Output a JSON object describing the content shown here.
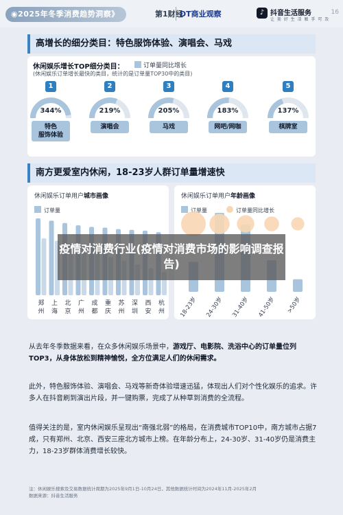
{
  "header": {
    "pill": "◉2025年冬季消费趋势洞察》",
    "brand_a": "第1财经",
    "brand_b": "DT商业观察",
    "tiktok_icon": "♪",
    "tiktok_name": "抖音生活服务",
    "tiktok_sub": "让 美 好 生 活 触 手 可 及",
    "page_number": "16"
  },
  "section1": {
    "title": "高增长的细分类目：特色服饰体验、演唱会、马戏",
    "card_title": "休闲娱乐增长TOP细分类目：",
    "legend": "订单量同比增长",
    "note": "(休闲娱乐订单增长最快的类目，统计的是订单量TOP30中的类目)",
    "categories": [
      {
        "rank": "1",
        "growth": "344%",
        "name": "特色\n服饰体验",
        "fill": 0.95
      },
      {
        "rank": "2",
        "growth": "219%",
        "name": "演唱会",
        "fill": 0.62
      },
      {
        "rank": "3",
        "growth": "205%",
        "name": "马戏",
        "fill": 0.58
      },
      {
        "rank": "4",
        "growth": "183%",
        "name": "网吧/网咖",
        "fill": 0.52
      },
      {
        "rank": "5",
        "growth": "137%",
        "name": "棋牌室",
        "fill": 0.4
      }
    ]
  },
  "section2": {
    "title": "南方更爱室内休闲，18-23岁人群订单量增速快",
    "left": {
      "header_prefix": "休闲娱乐订单用户",
      "header_bold": "城市画像",
      "legend": "订单量"
    },
    "right": {
      "header_prefix": "休闲娱乐订单用户",
      "header_bold": "年龄画像",
      "legend_bar": "订单量",
      "legend_dot": "订单量同比增长"
    }
  },
  "chart_data": [
    {
      "type": "bar",
      "categories": [
        "郑州",
        "上海",
        "北京",
        "广州",
        "成都",
        "重庆",
        "苏州",
        "深圳",
        "西安",
        "杭州"
      ],
      "series": [
        {
          "name": "订单量",
          "values": [
            100,
            97,
            94,
            91,
            89,
            88,
            86,
            85,
            84,
            82
          ]
        },
        {
          "values": [
            74,
            71,
            68,
            62,
            55,
            50,
            45,
            40,
            35,
            30
          ]
        }
      ],
      "xlabel": "",
      "ylabel": "",
      "grid": false,
      "legend": "top-left"
    },
    {
      "type": "bar",
      "categories": [
        "18-23岁",
        "24-30岁",
        "31-40岁",
        "41-50岁",
        ">50岁"
      ],
      "series": [
        {
          "name": "订单量",
          "values": [
            38,
            100,
            85,
            40,
            16
          ]
        },
        {
          "name": "订单量同比增长",
          "values": [
            100,
            72,
            55,
            40,
            30
          ]
        }
      ],
      "xlabel": "",
      "ylabel": "",
      "grid": false,
      "legend": "top-left"
    }
  ],
  "paragraphs": {
    "p1a": "从去年冬季数据来看，在众多休闲娱乐场景中，",
    "p1b": "游戏厅、电影院、洗浴中心的订单量位列TOP3，从身体放松到精神愉悦，全方位满足人们的休闲需求。",
    "p2": "此外，特色服饰体验、演唱会、马戏等新奇体验增速迅猛，体现出人们对个性化娱乐的追求。许多人在抖音刷到演出片段，并一键购票，完成了从种草到消费的全流程。",
    "p3": "值得关注的是，室内休闲娱乐呈现出“南强北弱”的格局，在消费城市TOP10中，南方城市占据7成，只有郑州、北京、西安三座北方城市上榜。在年龄分布上，24-30岁、31-40岁仍是消费主力，18-23岁群体消费增长较快。"
  },
  "footnote": {
    "line1": "注：休闲娱乐搜索及交易数据统计周期为2025年9月1日-10月24日，其他数据统计时间为2024年11月-2025年2月",
    "line2": "数据来源：抖音生活服务"
  },
  "overlay": {
    "title": "疫情对消费行业(疫情对消费市场的影响调查报告)"
  },
  "colors": {
    "bar": "#a9c5de",
    "accent": "#2f7fc0",
    "dot": "#f8d6b3"
  }
}
